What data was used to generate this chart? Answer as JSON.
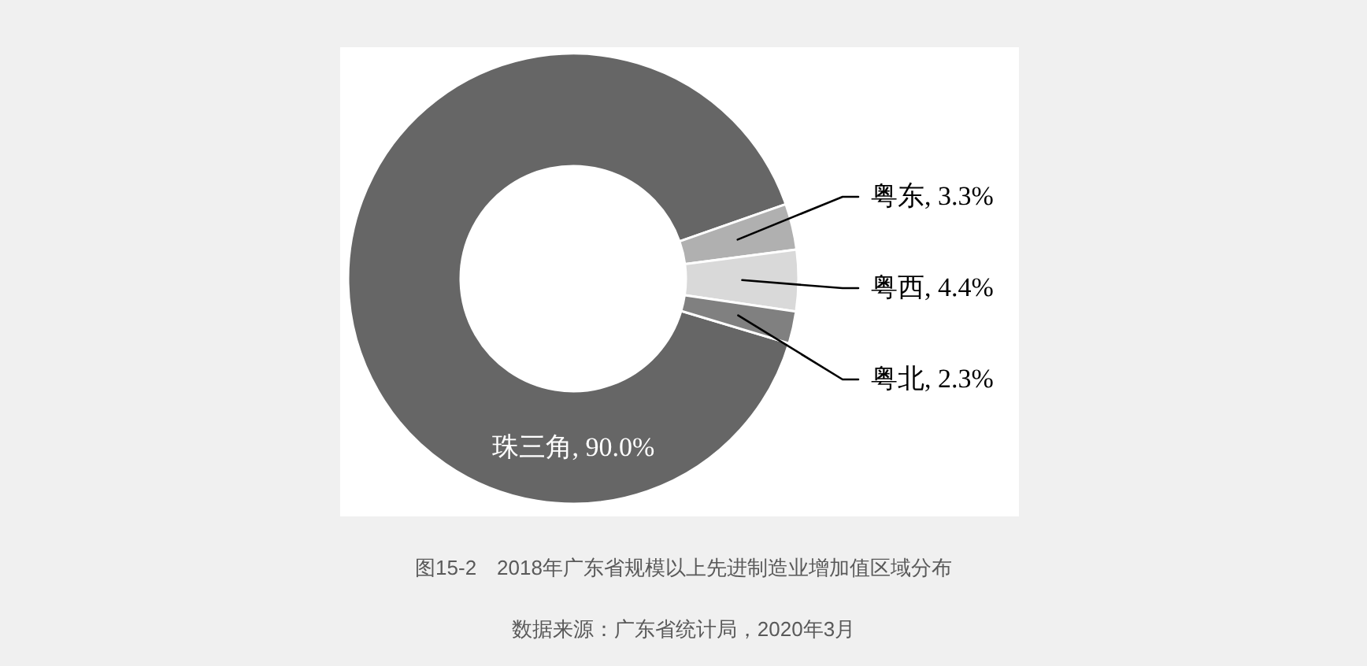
{
  "chart_data": {
    "type": "donut",
    "title": "图15-2　2018年广东省规模以上先进制造业增加值区域分布",
    "categories": [
      "珠三角",
      "粤东",
      "粤西",
      "粤北"
    ],
    "values": [
      90.0,
      3.3,
      4.4,
      2.3
    ],
    "colors": [
      "#666666",
      "#b0b0b0",
      "#d9d9d9",
      "#808080"
    ],
    "value_labels": [
      "90.0%",
      "3.3%",
      "4.4%",
      "2.3%"
    ],
    "annotations": [
      "数据来源：广东省统计局，2020年3月"
    ]
  }
}
